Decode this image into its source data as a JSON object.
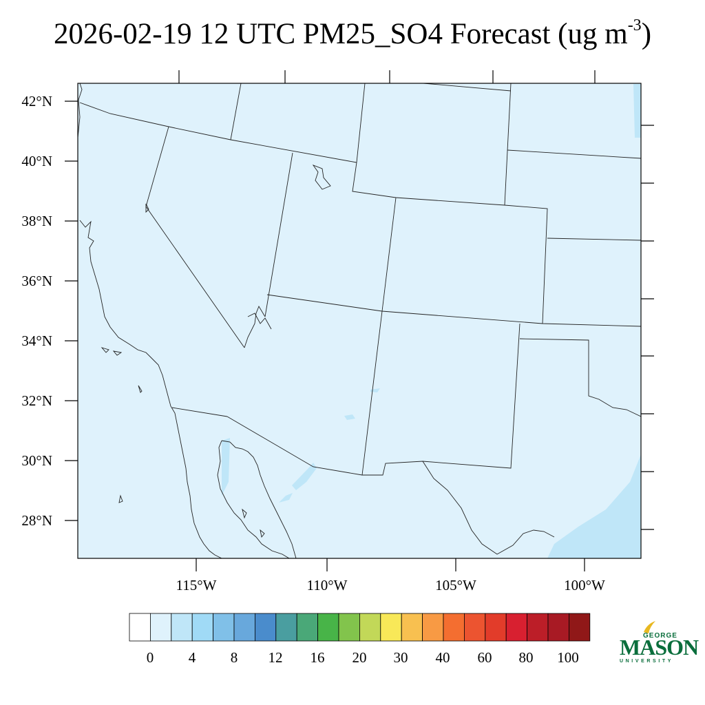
{
  "title": {
    "main": "2026-02-19 12 UTC PM25_SO4 Forecast (ug m",
    "superscript": "-3",
    "close": ")"
  },
  "map": {
    "background_color": "#dff2fc",
    "latitude_labels": [
      "42°N",
      "40°N",
      "38°N",
      "36°N",
      "34°N",
      "32°N",
      "30°N",
      "28°N"
    ],
    "longitude_labels": [
      "115°W",
      "110°W",
      "105°W",
      "100°W"
    ],
    "field_colors": {
      "low": "#dff2fc",
      "mid": "#bfe6f8"
    }
  },
  "colorbar": {
    "colors": [
      "#ffffff",
      "#dff2fc",
      "#bfe6f8",
      "#a0daf6",
      "#80c0e8",
      "#68a8dc",
      "#4a8ccc",
      "#4a9ea0",
      "#4aa878",
      "#48b448",
      "#82c44c",
      "#c2d858",
      "#f8e858",
      "#f8c050",
      "#f89a44",
      "#f46e30",
      "#ec5430",
      "#e23c2a",
      "#d82030",
      "#bc1e28",
      "#a81a24",
      "#901818"
    ],
    "labels": [
      "0",
      "4",
      "8",
      "12",
      "16",
      "20",
      "30",
      "40",
      "60",
      "80",
      "100"
    ]
  },
  "logo": {
    "top": "GEORGE",
    "middle": "MASON",
    "bottom": "UNIVERSITY",
    "color": "#0a6e3c",
    "accent_color": "#e8b820"
  }
}
